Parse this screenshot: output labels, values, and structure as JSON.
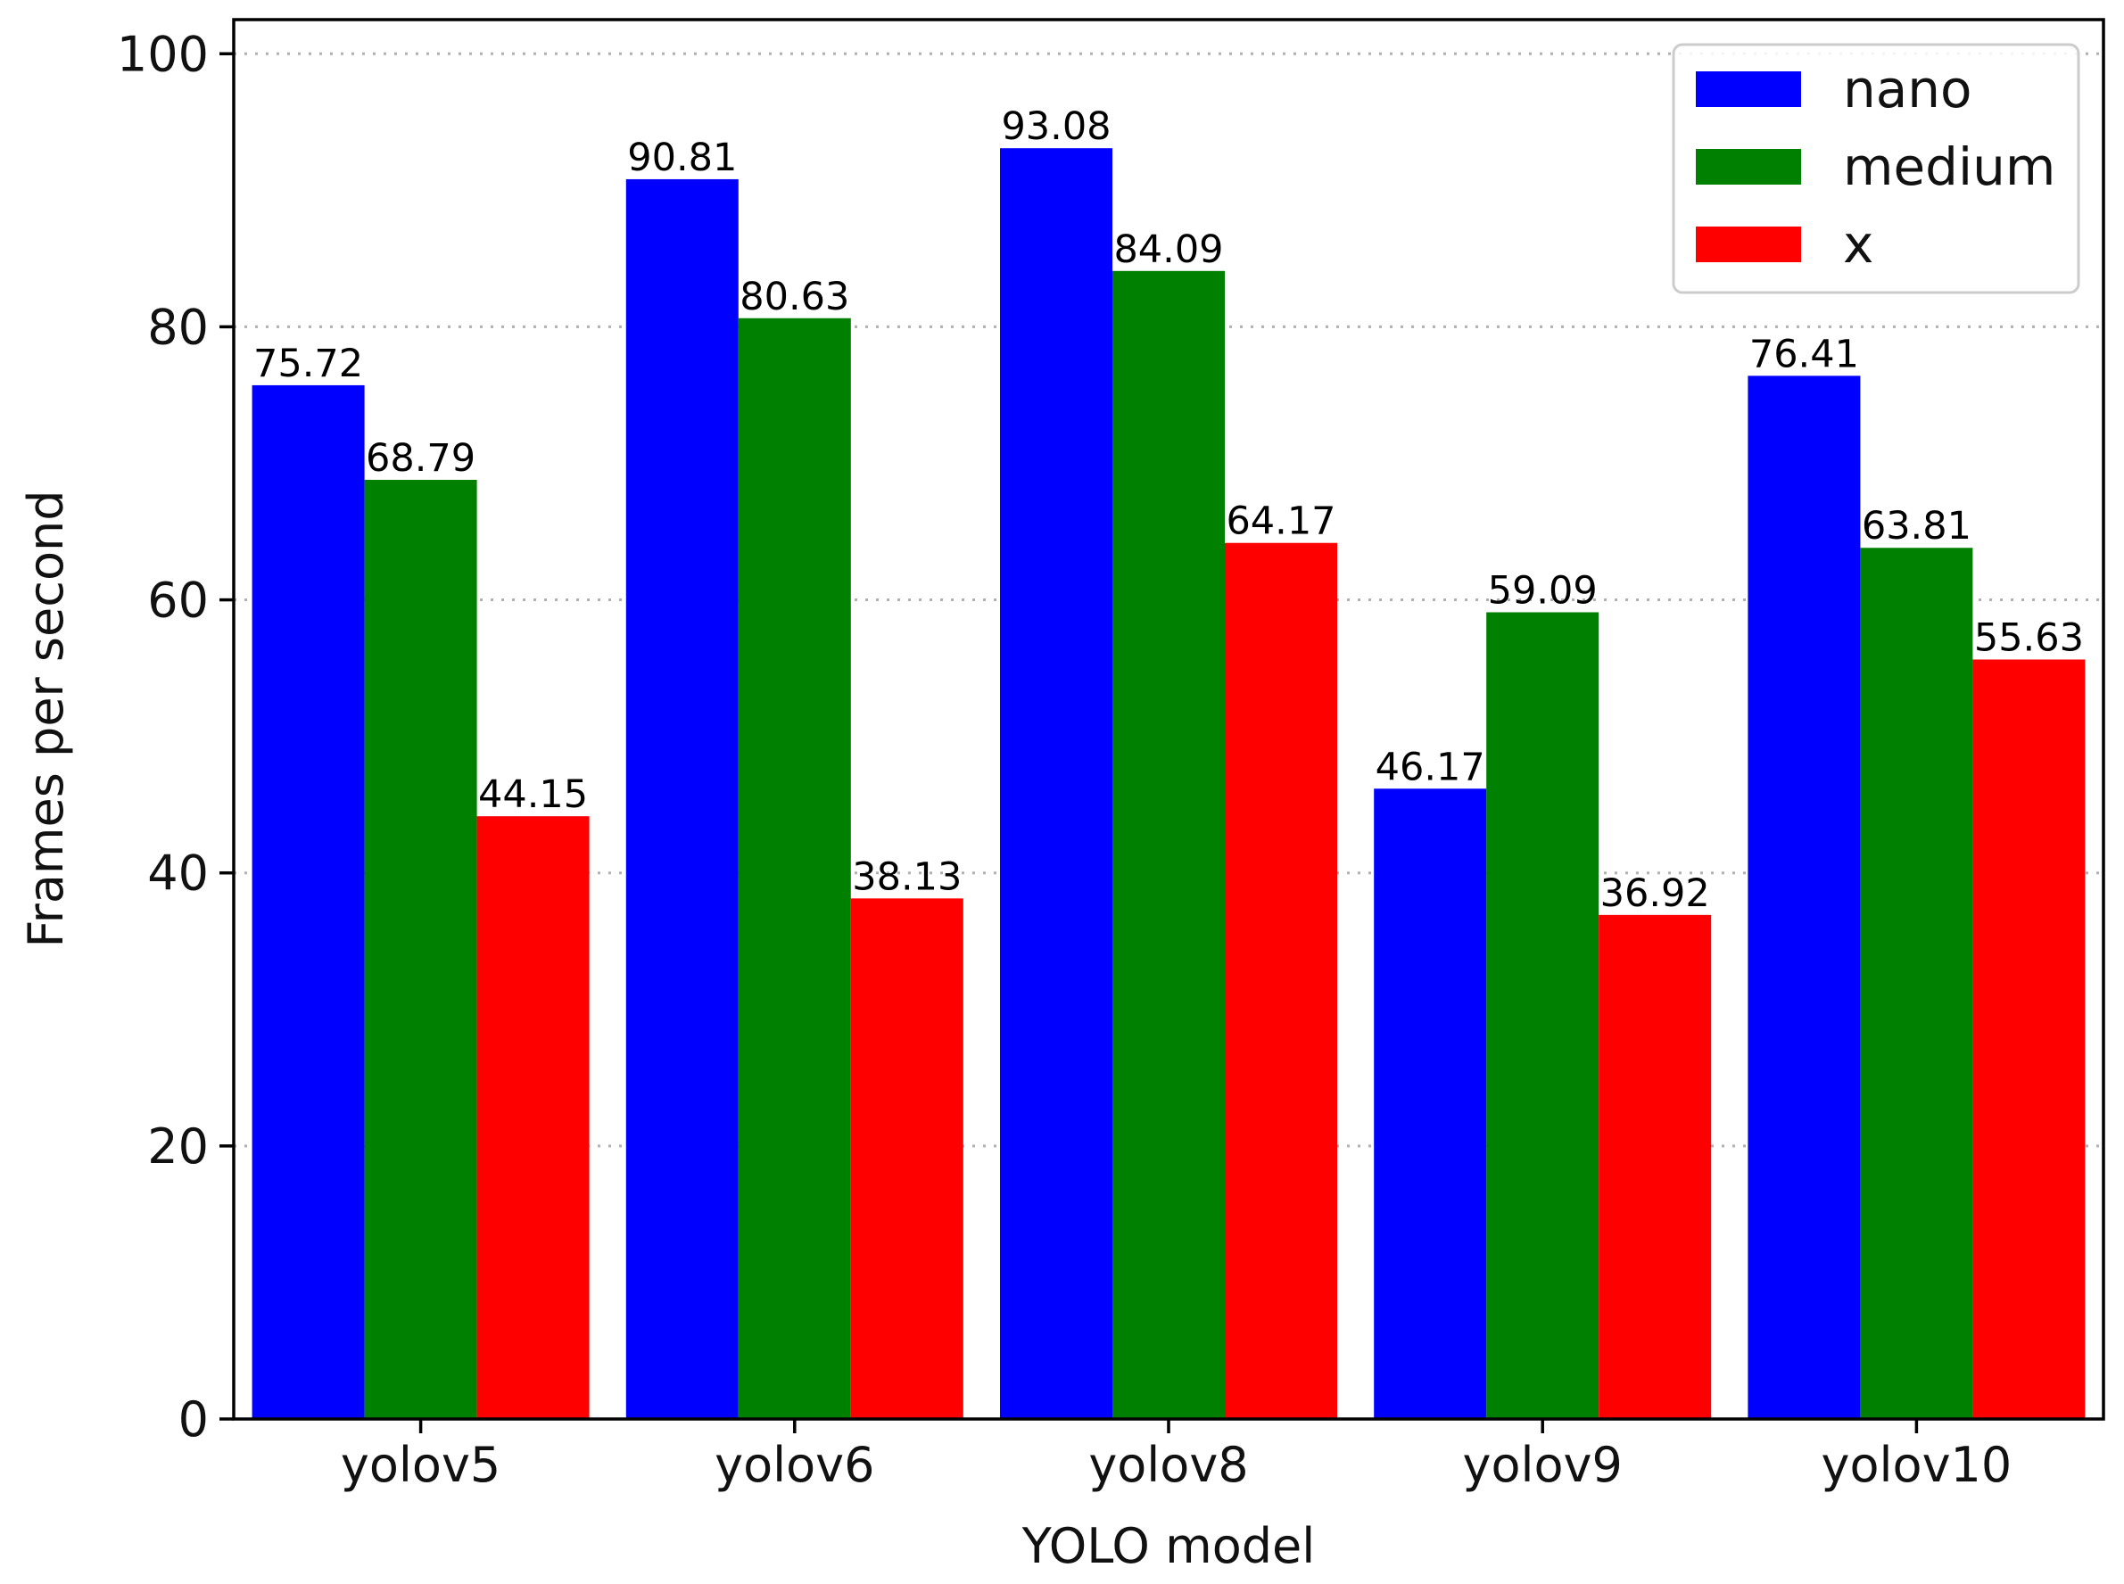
{
  "chart_data": {
    "type": "bar",
    "title": "",
    "xlabel": "YOLO model",
    "ylabel": "Frames per second",
    "categories": [
      "yolov5",
      "yolov6",
      "yolov8",
      "yolov9",
      "yolov10"
    ],
    "series": [
      {
        "name": "nano",
        "color": "#0000ff",
        "values": [
          75.72,
          90.81,
          93.08,
          46.17,
          76.41
        ]
      },
      {
        "name": "medium",
        "color": "#008000",
        "values": [
          68.79,
          80.63,
          84.09,
          59.09,
          63.81
        ]
      },
      {
        "name": "x",
        "color": "#ff0000",
        "values": [
          44.15,
          38.13,
          64.17,
          36.92,
          55.63
        ]
      }
    ],
    "value_labels": [
      [
        "75.72",
        "90.81",
        "93.08",
        "46.17",
        "76.41"
      ],
      [
        "68.79",
        "80.63",
        "84.09",
        "59.09",
        "63.81"
      ],
      [
        "44.15",
        "38.13",
        "64.17",
        "36.92",
        "55.63"
      ]
    ],
    "ylim": [
      0,
      102.5
    ],
    "yticks": [
      0,
      20,
      40,
      60,
      80,
      100
    ],
    "ytick_labels": [
      "0",
      "20",
      "40",
      "60",
      "80",
      "100"
    ],
    "grid": "horizontal dotted",
    "legend": {
      "position": "top-right",
      "entries": [
        "nano",
        "medium",
        "x"
      ]
    }
  }
}
